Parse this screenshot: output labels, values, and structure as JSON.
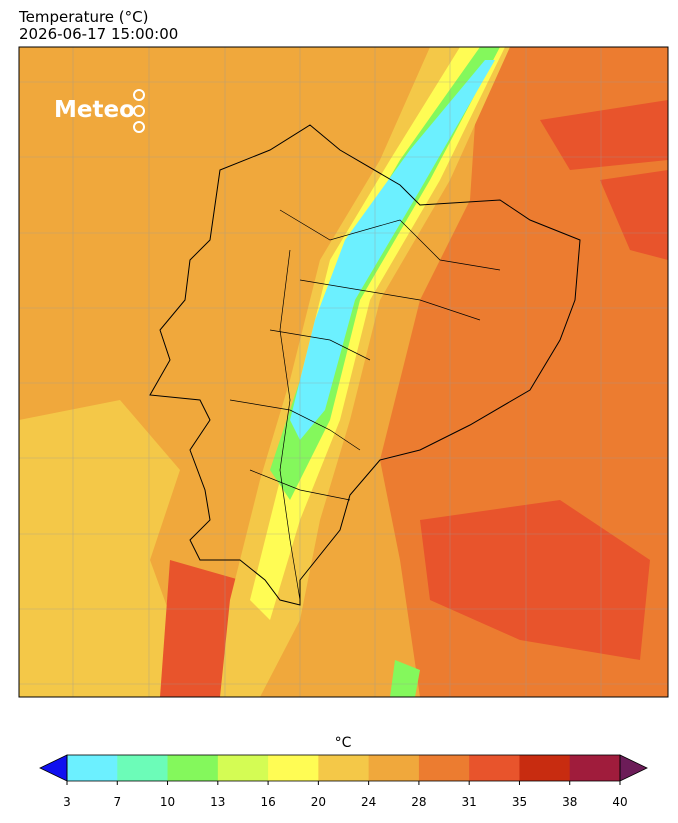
{
  "header": {
    "title": "Temperature (°C)",
    "timestamp": "2026-06-17 15:00:00"
  },
  "logo": {
    "text": "Meteo"
  },
  "colorbar": {
    "label": "°C",
    "ticks": [
      3,
      7,
      10,
      13,
      16,
      20,
      24,
      28,
      31,
      35,
      38,
      40
    ],
    "colors": [
      "#6cf0ff",
      "#6cfcb8",
      "#84f85c",
      "#d4fc54",
      "#fffc54",
      "#f4c848",
      "#f0a83c",
      "#ec7c30",
      "#e8542c",
      "#c82c10",
      "#a01c3c"
    ],
    "under_color": "#1010f0",
    "over_color": "#6c1c58"
  }
}
